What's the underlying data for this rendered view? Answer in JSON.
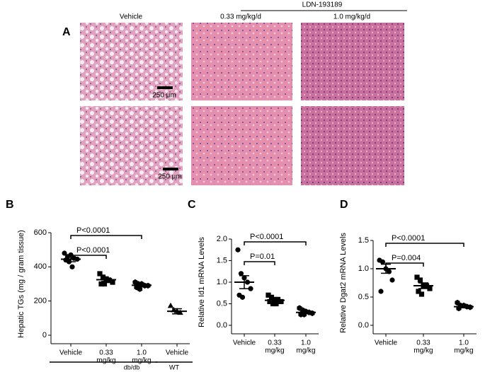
{
  "panel_a": {
    "label": "A",
    "group_label": "LDN-193189",
    "columns": [
      "Vehicle",
      "0.33 mg/kg/d",
      "1.0 mg/kg/d"
    ],
    "scale_bars": [
      "250 μm",
      "250 μm"
    ]
  },
  "chart_data": [
    {
      "type": "dotplot",
      "label": "B",
      "ylabel": "Hepatic TGs (mg / gram tissue)",
      "categories": [
        [
          "Vehicle"
        ],
        [
          "0.33",
          "mg/kg"
        ],
        [
          "1.0",
          "mg/kg"
        ],
        [
          "Vehicle"
        ]
      ],
      "groups": [
        {
          "label": "db/db",
          "members": [
            0,
            1,
            2
          ]
        },
        {
          "label": "WT",
          "members": [
            3
          ]
        }
      ],
      "markers": [
        "circle",
        "square",
        "hexagon",
        "triangle"
      ],
      "color": "#000000",
      "points": [
        [
          480,
          460,
          470,
          450,
          445,
          440,
          430,
          400
        ],
        [
          360,
          340,
          330,
          320,
          310,
          300,
          300
        ],
        [
          310,
          300,
          300,
          290,
          290,
          280,
          270
        ],
        [
          170,
          145,
          140,
          130
        ]
      ],
      "mean": [
        445,
        325,
        292,
        140
      ],
      "sem": [
        15,
        10,
        8,
        15
      ],
      "comparisons": [
        {
          "label": "P<0.0001",
          "between": [
            0,
            1
          ]
        },
        {
          "label": "P<0.0001",
          "between": [
            0,
            2
          ]
        }
      ],
      "ylim": [
        0,
        600
      ],
      "yticks": [
        0,
        200,
        400,
        600
      ]
    },
    {
      "type": "dotplot",
      "label": "C",
      "ylabel": "Relative Id1 mRNA Levels",
      "categories": [
        [
          "Vehicle"
        ],
        [
          "0.33",
          "mg/kg"
        ],
        [
          "1.0",
          "mg/kg"
        ]
      ],
      "markers": [
        "circle",
        "square",
        "hexagon"
      ],
      "color": "#000000",
      "points": [
        [
          1.75,
          1.2,
          1.1,
          1.0,
          0.85,
          0.7,
          0.65
        ],
        [
          0.7,
          0.65,
          0.6,
          0.6,
          0.55,
          0.55,
          0.5,
          0.5
        ],
        [
          0.4,
          0.35,
          0.32,
          0.3,
          0.28,
          0.25,
          0.25
        ]
      ],
      "mean": [
        1.0,
        0.58,
        0.3
      ],
      "sem": [
        0.15,
        0.03,
        0.03
      ],
      "comparisons": [
        {
          "label": "P=0.01",
          "between": [
            0,
            1
          ]
        },
        {
          "label": "P<0.0001",
          "between": [
            0,
            2
          ]
        }
      ],
      "ylim": [
        0,
        2
      ],
      "yticks": [
        {
          "value": 0,
          "label": "0.0"
        },
        0.5,
        {
          "value": 1,
          "label": "1.0"
        },
        1.5,
        {
          "value": 2,
          "label": "2.0"
        }
      ]
    },
    {
      "type": "dotplot",
      "label": "D",
      "ylabel": "Relative Dgat2 mRNA Levels",
      "categories": [
        [
          "Vehicle"
        ],
        [
          "0.33",
          "mg/kg"
        ],
        [
          "1.0",
          "mg/kg"
        ]
      ],
      "markers": [
        "circle",
        "square",
        "hexagon"
      ],
      "color": "#000000",
      "points": [
        [
          1.15,
          1.12,
          1.0,
          0.95,
          0.8,
          0.6
        ],
        [
          0.85,
          0.8,
          0.7,
          0.7,
          0.65,
          0.6,
          0.55
        ],
        [
          0.4,
          0.35,
          0.35,
          0.33,
          0.32,
          0.3
        ]
      ],
      "mean": [
        1.0,
        0.7,
        0.33
      ],
      "sem": [
        0.08,
        0.05,
        0.02
      ],
      "comparisons": [
        {
          "label": "P=0.004",
          "between": [
            0,
            1
          ]
        },
        {
          "label": "P<0.0001",
          "between": [
            0,
            2
          ]
        }
      ],
      "ylim": [
        0,
        1.5
      ],
      "yticks": [
        {
          "value": 0,
          "label": "0.0"
        },
        0.5,
        {
          "value": 1,
          "label": "1.0"
        },
        1.5
      ]
    }
  ]
}
